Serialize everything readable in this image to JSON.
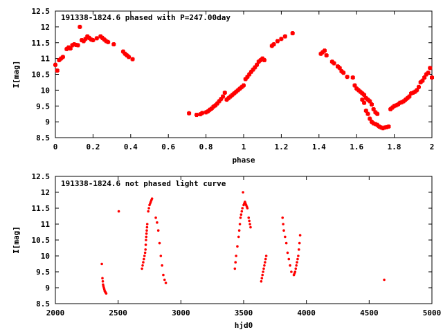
{
  "chart_data": [
    {
      "type": "scatter",
      "title": "191338-1824.6 phased with P=247.00day",
      "xlabel": "phase",
      "ylabel": "I[mag]",
      "xlim": [
        0,
        2
      ],
      "ylim": [
        12.5,
        8.5
      ],
      "y_inverted": true,
      "grid": false,
      "marker_color": "#ff0000",
      "marker": "cross",
      "xticks": [
        "0",
        "0.2",
        "0.4",
        "0.6",
        "0.8",
        "1",
        "1.2",
        "1.4",
        "1.6",
        "1.8",
        "2"
      ],
      "xtick_values": [
        0,
        0.2,
        0.4,
        0.6,
        0.8,
        1.0,
        1.2,
        1.4,
        1.6,
        1.8,
        2.0
      ],
      "yticks": [
        "8.5",
        "9",
        "9.5",
        "10",
        "10.5",
        "11",
        "11.5",
        "12",
        "12.5"
      ],
      "ytick_values": [
        8.5,
        9,
        9.5,
        10,
        10.5,
        11,
        11.5,
        12,
        12.5
      ],
      "points": [
        [
          0.0,
          10.8
        ],
        [
          0.01,
          10.62
        ],
        [
          0.02,
          10.95
        ],
        [
          0.03,
          11.0
        ],
        [
          0.04,
          11.05
        ],
        [
          0.06,
          11.3
        ],
        [
          0.07,
          11.35
        ],
        [
          0.08,
          11.32
        ],
        [
          0.09,
          11.42
        ],
        [
          0.1,
          11.45
        ],
        [
          0.11,
          11.43
        ],
        [
          0.12,
          11.42
        ],
        [
          0.13,
          12.0
        ],
        [
          0.14,
          11.58
        ],
        [
          0.15,
          11.55
        ],
        [
          0.16,
          11.62
        ],
        [
          0.17,
          11.7
        ],
        [
          0.18,
          11.65
        ],
        [
          0.19,
          11.6
        ],
        [
          0.2,
          11.58
        ],
        [
          0.22,
          11.64
        ],
        [
          0.24,
          11.7
        ],
        [
          0.25,
          11.65
        ],
        [
          0.26,
          11.6
        ],
        [
          0.27,
          11.55
        ],
        [
          0.28,
          11.52
        ],
        [
          0.31,
          11.45
        ],
        [
          0.36,
          11.22
        ],
        [
          0.37,
          11.15
        ],
        [
          0.38,
          11.1
        ],
        [
          0.39,
          11.05
        ],
        [
          0.41,
          10.98
        ],
        [
          0.71,
          9.27
        ],
        [
          0.75,
          9.22
        ],
        [
          0.77,
          9.24
        ],
        [
          0.78,
          9.28
        ],
        [
          0.8,
          9.3
        ],
        [
          0.81,
          9.33
        ],
        [
          0.82,
          9.38
        ],
        [
          0.83,
          9.42
        ],
        [
          0.84,
          9.48
        ],
        [
          0.85,
          9.52
        ],
        [
          0.86,
          9.58
        ],
        [
          0.87,
          9.65
        ],
        [
          0.88,
          9.72
        ],
        [
          0.89,
          9.8
        ],
        [
          0.9,
          9.92
        ],
        [
          0.91,
          9.7
        ],
        [
          0.92,
          9.75
        ],
        [
          0.93,
          9.8
        ],
        [
          0.94,
          9.85
        ],
        [
          0.95,
          9.9
        ],
        [
          0.96,
          9.95
        ],
        [
          0.97,
          10.0
        ],
        [
          0.98,
          10.05
        ],
        [
          0.99,
          10.1
        ],
        [
          1.0,
          10.15
        ],
        [
          1.01,
          10.35
        ],
        [
          1.02,
          10.42
        ],
        [
          1.03,
          10.5
        ],
        [
          1.04,
          10.58
        ],
        [
          1.05,
          10.65
        ],
        [
          1.06,
          10.72
        ],
        [
          1.07,
          10.8
        ],
        [
          1.08,
          10.9
        ],
        [
          1.09,
          10.95
        ],
        [
          1.1,
          11.0
        ],
        [
          1.11,
          10.95
        ],
        [
          1.15,
          11.4
        ],
        [
          1.16,
          11.45
        ],
        [
          1.18,
          11.55
        ],
        [
          1.2,
          11.62
        ],
        [
          1.22,
          11.7
        ],
        [
          1.26,
          11.8
        ],
        [
          1.41,
          11.15
        ],
        [
          1.42,
          11.2
        ],
        [
          1.43,
          11.25
        ],
        [
          1.44,
          11.1
        ],
        [
          1.47,
          10.9
        ],
        [
          1.48,
          10.85
        ],
        [
          1.5,
          10.75
        ],
        [
          1.51,
          10.7
        ],
        [
          1.52,
          10.6
        ],
        [
          1.53,
          10.55
        ],
        [
          1.55,
          10.42
        ],
        [
          1.58,
          10.4
        ],
        [
          1.59,
          10.15
        ],
        [
          1.6,
          10.05
        ],
        [
          1.61,
          10.0
        ],
        [
          1.62,
          9.95
        ],
        [
          1.63,
          9.9
        ],
        [
          1.64,
          9.85
        ],
        [
          1.65,
          9.75
        ],
        [
          1.66,
          9.7
        ],
        [
          1.67,
          9.65
        ],
        [
          1.68,
          9.55
        ],
        [
          1.69,
          9.4
        ],
        [
          1.7,
          9.3
        ],
        [
          1.71,
          9.25
        ],
        [
          1.63,
          9.7
        ],
        [
          1.64,
          9.6
        ],
        [
          1.65,
          9.35
        ],
        [
          1.66,
          9.25
        ],
        [
          1.67,
          9.1
        ],
        [
          1.68,
          9.0
        ],
        [
          1.69,
          8.95
        ],
        [
          1.7,
          8.93
        ],
        [
          1.71,
          8.9
        ],
        [
          1.72,
          8.85
        ],
        [
          1.73,
          8.82
        ],
        [
          1.74,
          8.8
        ],
        [
          1.75,
          8.82
        ],
        [
          1.76,
          8.83
        ],
        [
          1.77,
          8.85
        ],
        [
          1.78,
          9.4
        ],
        [
          1.79,
          9.45
        ],
        [
          1.8,
          9.5
        ],
        [
          1.81,
          9.52
        ],
        [
          1.82,
          9.55
        ],
        [
          1.83,
          9.6
        ],
        [
          1.84,
          9.62
        ],
        [
          1.85,
          9.65
        ],
        [
          1.86,
          9.7
        ],
        [
          1.87,
          9.75
        ],
        [
          1.88,
          9.8
        ],
        [
          1.89,
          9.9
        ],
        [
          1.9,
          9.92
        ],
        [
          1.91,
          9.95
        ],
        [
          1.92,
          10.0
        ],
        [
          1.93,
          10.1
        ],
        [
          1.94,
          10.25
        ],
        [
          1.95,
          10.3
        ],
        [
          1.96,
          10.4
        ],
        [
          1.97,
          10.5
        ],
        [
          1.98,
          10.55
        ],
        [
          1.99,
          10.7
        ],
        [
          2.0,
          10.4
        ]
      ]
    },
    {
      "type": "scatter",
      "title": "191338-1824.6 not phased light curve",
      "xlabel": "hjd0",
      "ylabel": "I[mag]",
      "xlim": [
        2000,
        5000
      ],
      "ylim": [
        12.5,
        8.5
      ],
      "y_inverted": true,
      "grid": false,
      "marker_color": "#ff0000",
      "marker": "dot",
      "xticks": [
        "2000",
        "2500",
        "3000",
        "3500",
        "4000",
        "4500",
        "5000"
      ],
      "xtick_values": [
        2000,
        2500,
        3000,
        3500,
        4000,
        4500,
        5000
      ],
      "yticks": [
        "8.5",
        "9",
        "9.5",
        "10",
        "10.5",
        "11",
        "11.5",
        "12",
        "12.5"
      ],
      "ytick_values": [
        8.5,
        9,
        9.5,
        10,
        10.5,
        11,
        11.5,
        12,
        12.5
      ],
      "points": [
        [
          2370,
          9.75
        ],
        [
          2375,
          9.3
        ],
        [
          2378,
          9.2
        ],
        [
          2380,
          9.1
        ],
        [
          2383,
          9.05
        ],
        [
          2386,
          9.0
        ],
        [
          2390,
          8.95
        ],
        [
          2393,
          8.9
        ],
        [
          2397,
          8.87
        ],
        [
          2400,
          8.85
        ],
        [
          2405,
          8.82
        ],
        [
          2505,
          11.4
        ],
        [
          2690,
          9.6
        ],
        [
          2695,
          9.7
        ],
        [
          2700,
          9.8
        ],
        [
          2705,
          9.9
        ],
        [
          2710,
          10.0
        ],
        [
          2715,
          10.1
        ],
        [
          2718,
          10.2
        ],
        [
          2720,
          10.35
        ],
        [
          2722,
          10.5
        ],
        [
          2724,
          10.6
        ],
        [
          2726,
          10.7
        ],
        [
          2728,
          10.8
        ],
        [
          2730,
          10.9
        ],
        [
          2732,
          11.0
        ],
        [
          2740,
          11.4
        ],
        [
          2745,
          11.5
        ],
        [
          2750,
          11.6
        ],
        [
          2755,
          11.65
        ],
        [
          2760,
          11.7
        ],
        [
          2765,
          11.75
        ],
        [
          2770,
          11.8
        ],
        [
          2800,
          11.2
        ],
        [
          2810,
          11.05
        ],
        [
          2820,
          10.8
        ],
        [
          2830,
          10.4
        ],
        [
          2840,
          10.0
        ],
        [
          2850,
          9.7
        ],
        [
          2860,
          9.4
        ],
        [
          2870,
          9.25
        ],
        [
          2880,
          9.15
        ],
        [
          3430,
          9.6
        ],
        [
          3435,
          9.8
        ],
        [
          3440,
          10.0
        ],
        [
          3450,
          10.3
        ],
        [
          3460,
          10.6
        ],
        [
          3465,
          10.8
        ],
        [
          3470,
          11.0
        ],
        [
          3475,
          11.2
        ],
        [
          3480,
          11.3
        ],
        [
          3485,
          11.4
        ],
        [
          3490,
          11.5
        ],
        [
          3495,
          12.0
        ],
        [
          3500,
          11.6
        ],
        [
          3505,
          11.65
        ],
        [
          3510,
          11.7
        ],
        [
          3515,
          11.65
        ],
        [
          3520,
          11.6
        ],
        [
          3525,
          11.55
        ],
        [
          3530,
          11.5
        ],
        [
          3540,
          11.2
        ],
        [
          3545,
          11.1
        ],
        [
          3550,
          11.0
        ],
        [
          3555,
          10.9
        ],
        [
          3640,
          9.2
        ],
        [
          3645,
          9.3
        ],
        [
          3650,
          9.4
        ],
        [
          3655,
          9.5
        ],
        [
          3660,
          9.6
        ],
        [
          3665,
          9.7
        ],
        [
          3670,
          9.8
        ],
        [
          3675,
          9.9
        ],
        [
          3680,
          10.0
        ],
        [
          3810,
          11.2
        ],
        [
          3815,
          11.0
        ],
        [
          3820,
          10.8
        ],
        [
          3830,
          10.6
        ],
        [
          3840,
          10.4
        ],
        [
          3850,
          10.1
        ],
        [
          3860,
          9.9
        ],
        [
          3870,
          9.7
        ],
        [
          3880,
          9.5
        ],
        [
          3900,
          9.4
        ],
        [
          3905,
          9.45
        ],
        [
          3910,
          9.5
        ],
        [
          3915,
          9.6
        ],
        [
          3920,
          9.7
        ],
        [
          3925,
          9.8
        ],
        [
          3930,
          9.9
        ],
        [
          3935,
          10.0
        ],
        [
          3940,
          10.2
        ],
        [
          3945,
          10.4
        ],
        [
          3950,
          10.65
        ],
        [
          4620,
          9.25
        ]
      ]
    }
  ]
}
